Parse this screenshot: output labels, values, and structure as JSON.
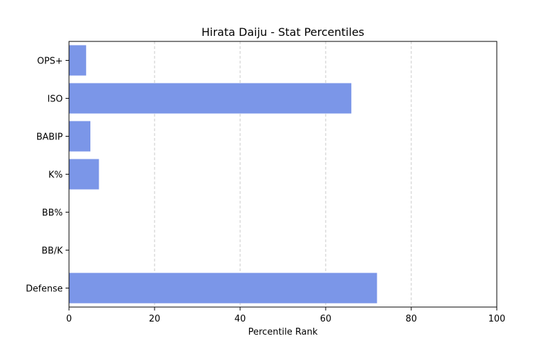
{
  "chart_data": {
    "type": "bar",
    "orientation": "horizontal",
    "title": "Hirata Daiju - Stat Percentiles",
    "xlabel": "Percentile Rank",
    "ylabel": "",
    "xlim": [
      0,
      100
    ],
    "xticks": [
      0,
      20,
      40,
      60,
      80,
      100
    ],
    "grid": "x-dashed",
    "bar_color": "#7b96e8",
    "categories": [
      "Defense",
      "BB/K",
      "BB%",
      "K%",
      "BABIP",
      "ISO",
      "OPS+"
    ],
    "values": [
      72,
      0,
      0,
      7,
      5,
      66,
      4
    ]
  }
}
